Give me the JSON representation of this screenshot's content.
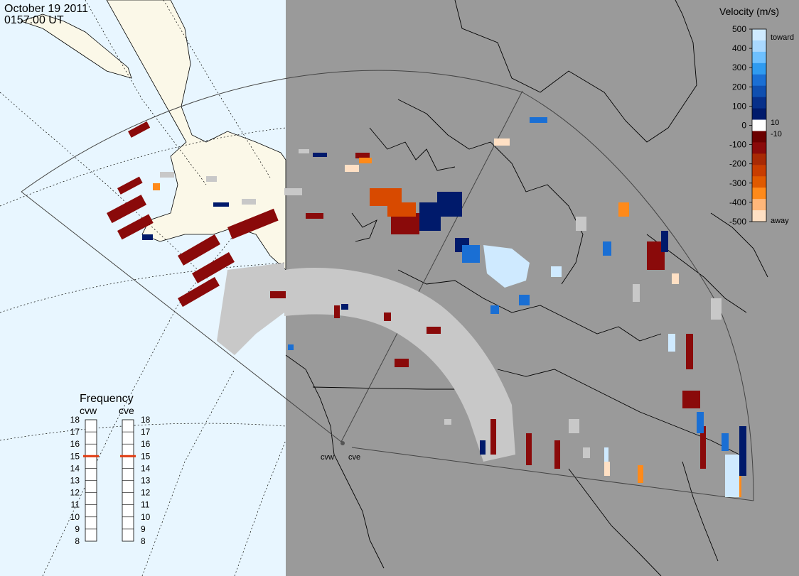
{
  "header": {
    "date": "October 19 2011",
    "time": "0157:00 UT"
  },
  "velocity_scale": {
    "title": "Velocity (m/s)",
    "ticks": [
      "500",
      "400",
      "300",
      "200",
      "100",
      "0",
      "-100",
      "-200",
      "-300",
      "-400",
      "-500"
    ],
    "inner_labels": [
      "10",
      "-10"
    ],
    "end_labels": [
      "toward",
      "away"
    ],
    "colors": [
      "#cfeaff",
      "#a9d8ff",
      "#6ec0ff",
      "#2f9bf0",
      "#1a6fd4",
      "#0f4fb0",
      "#07308a",
      "#001a6b",
      "#ffffff",
      "#6b0000",
      "#8a0a0a",
      "#a82a05",
      "#c83d00",
      "#e05a00",
      "#ff8a1a",
      "#ffb77a",
      "#ffe0c4"
    ]
  },
  "frequency": {
    "title": "Frequency",
    "radars": [
      "cvw",
      "cve"
    ],
    "ticks": [
      "18",
      "17",
      "16",
      "15",
      "14",
      "13",
      "12",
      "11",
      "10",
      "9",
      "8"
    ],
    "selected_mhz": {
      "cvw": 15,
      "cve": 15
    },
    "marker_color": "#e03a10"
  },
  "radar_sites": {
    "labels": [
      "cvw",
      "cve"
    ]
  },
  "colors": {
    "daylight": "#e8f6ff",
    "night": "#9a9a9a",
    "land": "#fbf8e8",
    "ground_scatter": "#c8c8c8"
  }
}
